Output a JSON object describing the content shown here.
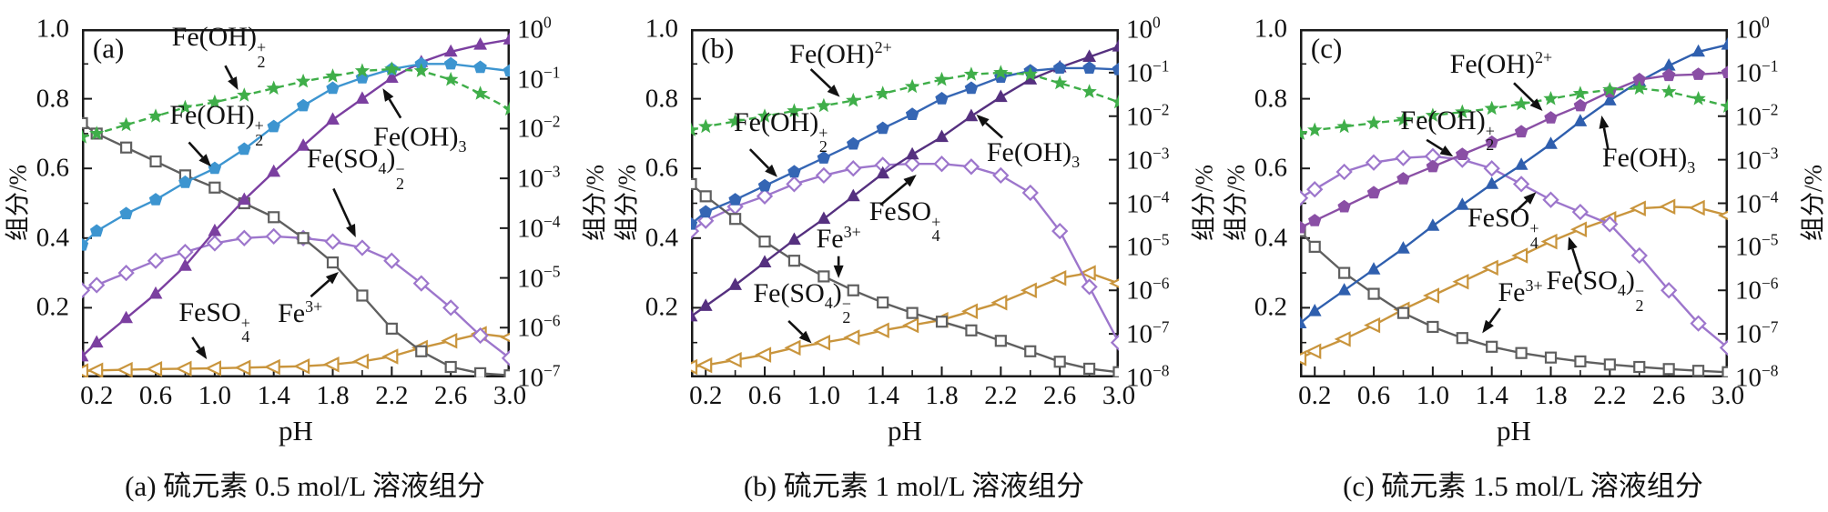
{
  "figure": {
    "background": "#ffffff",
    "axis_color": "#1a1a1a",
    "text_color": "#111111"
  },
  "chart_data": [
    {
      "type": "line",
      "tag": "(a)",
      "caption": "(a) 硫元素 0.5 mol/L 溶液组分",
      "x_label": "pH",
      "y_left_label": "组分/%",
      "y_right_label": "组分/%",
      "x_range": [
        0.1,
        3.0
      ],
      "y_left_range": [
        0,
        1.0
      ],
      "x_ticks": [
        "0.2",
        "0.6",
        "1.0",
        "1.4",
        "1.8",
        "2.2",
        "2.6",
        "3.0"
      ],
      "x_minor_ticks": [
        0.4,
        0.8,
        1.2,
        1.6,
        2.0,
        2.4,
        2.8
      ],
      "y_left_ticks": [
        "1.0",
        "0.8",
        "0.6",
        "0.4",
        "0.2"
      ],
      "y_left_minor_ticks": [
        0.1,
        0.3,
        0.5,
        0.7,
        0.9
      ],
      "y_right_exponents": [
        0,
        -1,
        -2,
        -3,
        -4,
        -5,
        -6,
        -7
      ],
      "x": [
        0.1,
        0.2,
        0.4,
        0.6,
        0.8,
        1.0,
        1.2,
        1.4,
        1.6,
        1.8,
        2.0,
        2.2,
        2.4,
        2.6,
        2.8,
        3.0
      ],
      "series": [
        {
          "species": "FeSO4+",
          "marker": "triangle-left",
          "color": "#c9953d",
          "line": "solid",
          "values": [
            0.018,
            0.02,
            0.022,
            0.024,
            0.025,
            0.026,
            0.028,
            0.03,
            0.032,
            0.037,
            0.046,
            0.06,
            0.085,
            0.105,
            0.125,
            0.115
          ]
        },
        {
          "species": "Fe(SO4)2-",
          "marker": "diamond",
          "color": "#9d76cc",
          "line": "solid",
          "values": [
            0.25,
            0.265,
            0.3,
            0.335,
            0.36,
            0.385,
            0.4,
            0.405,
            0.4,
            0.39,
            0.372,
            0.335,
            0.27,
            0.2,
            0.12,
            0.055
          ]
        },
        {
          "species": "Fe3+",
          "marker": "square",
          "color": "#5f5f5f",
          "line": "solid",
          "values": [
            0.73,
            0.7,
            0.66,
            0.62,
            0.58,
            0.545,
            0.5,
            0.46,
            0.4,
            0.33,
            0.235,
            0.14,
            0.075,
            0.03,
            0.012,
            0.006
          ]
        },
        {
          "species": "Fe(OH)3",
          "marker": "triangle-up",
          "color": "#7b3fa0",
          "line": "solid",
          "values": [
            0.06,
            0.1,
            0.17,
            0.24,
            0.32,
            0.42,
            0.51,
            0.59,
            0.665,
            0.74,
            0.8,
            0.86,
            0.905,
            0.935,
            0.955,
            0.97
          ]
        },
        {
          "species": "Fe(OH)2^+",
          "marker": "pentagon",
          "color": "#3d95d0",
          "line": "solid",
          "values": [
            0.38,
            0.42,
            0.47,
            0.51,
            0.56,
            0.6,
            0.655,
            0.72,
            0.78,
            0.83,
            0.86,
            0.885,
            0.9,
            0.9,
            0.89,
            0.88
          ]
        },
        {
          "species": "Fe(OH)2+",
          "marker": "star",
          "color": "#3fae49",
          "line": "dashed",
          "values": [
            0.69,
            0.7,
            0.725,
            0.75,
            0.775,
            0.79,
            0.81,
            0.83,
            0.85,
            0.865,
            0.88,
            0.885,
            0.88,
            0.855,
            0.815,
            0.77
          ]
        }
      ],
      "annotations": [
        {
          "species": "Fe(OH)2+",
          "label": [
            [
              "t",
              "Fe(OH)"
            ],
            [
              "stk",
              "+|2"
            ]
          ],
          "x": 0.32,
          "y": 0.05,
          "arrow": [
            0.335,
            0.105,
            0.365,
            0.175
          ]
        },
        {
          "species": "Fe(OH)2^+",
          "label": [
            [
              "t",
              "Fe(OH)"
            ],
            [
              "stk",
              "+|2"
            ]
          ],
          "x": 0.315,
          "y": 0.275,
          "arrow": [
            0.25,
            0.325,
            0.302,
            0.395
          ]
        },
        {
          "species": "Fe(OH)3",
          "label": [
            [
              "t",
              "Fe(OH)"
            ],
            [
              "sub",
              "3"
            ]
          ],
          "x": 0.79,
          "y": 0.315,
          "arrow": [
            0.745,
            0.255,
            0.703,
            0.17
          ]
        },
        {
          "species": "Fe(SO4)2-",
          "label": [
            [
              "t",
              "Fe(SO"
            ],
            [
              "sub",
              "4"
            ],
            [
              "t",
              ")"
            ],
            [
              "stk",
              "−|2"
            ]
          ],
          "x": 0.64,
          "y": 0.4,
          "arrow": [
            0.588,
            0.458,
            0.64,
            0.598
          ]
        },
        {
          "species": "Fe3+",
          "label": [
            [
              "t",
              "Fe"
            ],
            [
              "sup",
              "3+"
            ]
          ],
          "x": 0.51,
          "y": 0.815,
          "arrow": [
            0.535,
            0.768,
            0.6,
            0.697
          ]
        },
        {
          "species": "FeSO4+",
          "label": [
            [
              "t",
              "FeSO"
            ],
            [
              "stk",
              "+|4"
            ]
          ],
          "x": 0.31,
          "y": 0.84,
          "arrow": [
            0.258,
            0.885,
            0.292,
            0.948
          ]
        }
      ]
    },
    {
      "type": "line",
      "tag": "(b)",
      "caption": "(b) 硫元素 1 mol/L 溶液组分",
      "x_label": "pH",
      "y_left_label": "组分/%",
      "y_right_label": "组分/%",
      "x_range": [
        0.1,
        3.0
      ],
      "y_left_range": [
        0,
        1.0
      ],
      "x_ticks": [
        "0.2",
        "0.6",
        "1.0",
        "1.4",
        "1.8",
        "2.2",
        "2.6",
        "3.0"
      ],
      "x_minor_ticks": [
        0.4,
        0.8,
        1.2,
        1.6,
        2.0,
        2.4,
        2.8
      ],
      "y_left_ticks": [
        "1.0",
        "0.8",
        "0.6",
        "0.4",
        "0.2"
      ],
      "y_left_minor_ticks": [
        0.1,
        0.3,
        0.5,
        0.7,
        0.9
      ],
      "y_right_exponents": [
        0,
        -1,
        -2,
        -3,
        -4,
        -5,
        -6,
        -7,
        -8
      ],
      "x": [
        0.1,
        0.2,
        0.4,
        0.6,
        0.8,
        1.0,
        1.2,
        1.4,
        1.6,
        1.8,
        2.0,
        2.2,
        2.4,
        2.6,
        2.8,
        3.0
      ],
      "series": [
        {
          "species": "Fe(SO4)2-",
          "marker": "triangle-left",
          "color": "#c9953d",
          "line": "solid",
          "values": [
            0.03,
            0.035,
            0.05,
            0.065,
            0.085,
            0.1,
            0.115,
            0.135,
            0.15,
            0.165,
            0.19,
            0.215,
            0.25,
            0.285,
            0.3,
            0.27
          ]
        },
        {
          "species": "FeSO4+",
          "marker": "diamond",
          "color": "#9d76cc",
          "line": "solid",
          "values": [
            0.42,
            0.45,
            0.49,
            0.52,
            0.555,
            0.58,
            0.6,
            0.61,
            0.613,
            0.613,
            0.605,
            0.58,
            0.53,
            0.42,
            0.26,
            0.1
          ]
        },
        {
          "species": "Fe3+",
          "marker": "square",
          "color": "#5f5f5f",
          "line": "solid",
          "values": [
            0.555,
            0.52,
            0.455,
            0.39,
            0.335,
            0.29,
            0.25,
            0.215,
            0.185,
            0.16,
            0.135,
            0.105,
            0.075,
            0.045,
            0.025,
            0.015
          ]
        },
        {
          "species": "Fe(OH)3",
          "marker": "triangle-up",
          "color": "#55307f",
          "line": "solid",
          "values": [
            0.175,
            0.205,
            0.265,
            0.33,
            0.395,
            0.455,
            0.52,
            0.585,
            0.64,
            0.69,
            0.75,
            0.805,
            0.855,
            0.89,
            0.92,
            0.95
          ]
        },
        {
          "species": "Fe(OH)2^+",
          "marker": "pentagon",
          "color": "#3566b4",
          "line": "solid",
          "values": [
            0.44,
            0.475,
            0.51,
            0.55,
            0.59,
            0.63,
            0.67,
            0.715,
            0.755,
            0.8,
            0.83,
            0.862,
            0.88,
            0.888,
            0.888,
            0.884
          ]
        },
        {
          "species": "Fe(OH)^2+",
          "marker": "star",
          "color": "#3fae49",
          "line": "dashed",
          "values": [
            0.71,
            0.72,
            0.735,
            0.75,
            0.765,
            0.78,
            0.795,
            0.815,
            0.835,
            0.855,
            0.87,
            0.875,
            0.87,
            0.845,
            0.82,
            0.79
          ]
        }
      ],
      "annotations": [
        {
          "species": "Fe(OH)^2+",
          "label": [
            [
              "t",
              "Fe(OH)"
            ],
            [
              "sup",
              "2+"
            ]
          ],
          "x": 0.35,
          "y": 0.07,
          "arrow": [
            0.28,
            0.115,
            0.348,
            0.195
          ]
        },
        {
          "species": "Fe(OH)2^+",
          "label": [
            [
              "t",
              "Fe(OH)"
            ],
            [
              "stk",
              "+|2"
            ]
          ],
          "x": 0.21,
          "y": 0.295,
          "arrow": [
            0.138,
            0.345,
            0.202,
            0.425
          ]
        },
        {
          "species": "Fe3+",
          "label": [
            [
              "t",
              "Fe"
            ],
            [
              "sup",
              "3+"
            ]
          ],
          "x": 0.345,
          "y": 0.6,
          "arrow": [
            0.345,
            0.652,
            0.345,
            0.715
          ]
        },
        {
          "species": "FeSO4+",
          "label": [
            [
              "t",
              "FeSO"
            ],
            [
              "stk",
              "+|4"
            ]
          ],
          "x": 0.5,
          "y": 0.55,
          "arrow": [
            0.443,
            0.505,
            0.527,
            0.418
          ]
        },
        {
          "species": "Fe(SO4)2-",
          "label": [
            [
              "t",
              "Fe(SO"
            ],
            [
              "sub",
              "4"
            ],
            [
              "t",
              ")"
            ],
            [
              "stk",
              "−|2"
            ]
          ],
          "x": 0.26,
          "y": 0.785,
          "arrow": [
            0.228,
            0.838,
            0.282,
            0.902
          ]
        },
        {
          "species": "Fe(OH)3",
          "label": [
            [
              "t",
              "Fe(OH)"
            ],
            [
              "sub",
              "3"
            ]
          ],
          "x": 0.8,
          "y": 0.36,
          "arrow": [
            0.728,
            0.312,
            0.667,
            0.245
          ]
        }
      ]
    },
    {
      "type": "line",
      "tag": "(c)",
      "caption": "(c) 硫元素 1.5 mol/L 溶液组分",
      "x_label": "pH",
      "y_left_label": "组分/%",
      "y_right_label": "组分/%",
      "x_range": [
        0.1,
        3.0
      ],
      "y_left_range": [
        0,
        1.0
      ],
      "x_ticks": [
        "0.2",
        "0.6",
        "1.0",
        "1.4",
        "1.8",
        "2.2",
        "2.6",
        "3.0"
      ],
      "x_minor_ticks": [
        0.4,
        0.8,
        1.2,
        1.6,
        2.0,
        2.4,
        2.8
      ],
      "y_left_ticks": [
        "1.0",
        "0.8",
        "0.6",
        "0.4",
        "0.2"
      ],
      "y_left_minor_ticks": [
        0.1,
        0.3,
        0.5,
        0.7,
        0.9
      ],
      "y_right_exponents": [
        0,
        -1,
        -2,
        -3,
        -4,
        -5,
        -6,
        -7,
        -8
      ],
      "x": [
        0.1,
        0.2,
        0.4,
        0.6,
        0.8,
        1.0,
        1.2,
        1.4,
        1.6,
        1.8,
        2.0,
        2.2,
        2.4,
        2.6,
        2.8,
        3.0
      ],
      "series": [
        {
          "species": "Fe(SO4)2-",
          "marker": "triangle-left",
          "color": "#c9953d",
          "line": "solid",
          "values": [
            0.055,
            0.075,
            0.11,
            0.15,
            0.195,
            0.235,
            0.275,
            0.315,
            0.35,
            0.39,
            0.425,
            0.455,
            0.485,
            0.49,
            0.487,
            0.465
          ]
        },
        {
          "species": "FeSO4+",
          "marker": "diamond",
          "color": "#9d76cc",
          "line": "solid",
          "values": [
            0.515,
            0.54,
            0.59,
            0.617,
            0.63,
            0.635,
            0.625,
            0.6,
            0.555,
            0.51,
            0.475,
            0.44,
            0.35,
            0.25,
            0.155,
            0.085
          ]
        },
        {
          "species": "Fe3+",
          "marker": "square",
          "color": "#5f5f5f",
          "line": "solid",
          "values": [
            0.42,
            0.375,
            0.3,
            0.24,
            0.185,
            0.145,
            0.113,
            0.088,
            0.07,
            0.057,
            0.046,
            0.037,
            0.03,
            0.024,
            0.019,
            0.015
          ]
        },
        {
          "species": "Fe(OH)3",
          "marker": "triangle-up",
          "color": "#2f5fae",
          "line": "solid",
          "values": [
            0.155,
            0.19,
            0.25,
            0.31,
            0.37,
            0.435,
            0.495,
            0.555,
            0.61,
            0.67,
            0.735,
            0.795,
            0.85,
            0.895,
            0.935,
            0.955
          ]
        },
        {
          "species": "Fe(OH)2^+",
          "marker": "pentagon",
          "color": "#8a4fa5",
          "line": "solid",
          "values": [
            0.43,
            0.45,
            0.49,
            0.53,
            0.57,
            0.605,
            0.64,
            0.675,
            0.705,
            0.745,
            0.78,
            0.82,
            0.855,
            0.867,
            0.87,
            0.875
          ]
        },
        {
          "species": "Fe(OH)^2+",
          "marker": "star",
          "color": "#3fae49",
          "line": "dashed",
          "values": [
            0.7,
            0.71,
            0.72,
            0.73,
            0.74,
            0.752,
            0.762,
            0.772,
            0.785,
            0.8,
            0.815,
            0.826,
            0.83,
            0.82,
            0.8,
            0.778
          ]
        }
      ],
      "annotations": [
        {
          "species": "Fe(OH)^2+",
          "label": [
            [
              "t",
              "Fe(OH)"
            ],
            [
              "sup",
              "2+"
            ]
          ],
          "x": 0.47,
          "y": 0.1,
          "arrow": [
            0.5,
            0.155,
            0.567,
            0.235
          ]
        },
        {
          "species": "Fe(OH)2^+",
          "label": [
            [
              "t",
              "Fe(OH)"
            ],
            [
              "stk",
              "+|2"
            ]
          ],
          "x": 0.345,
          "y": 0.29,
          "arrow": [
            0.296,
            0.318,
            0.358,
            0.366
          ]
        },
        {
          "species": "FeSO4+",
          "label": [
            [
              "t",
              "FeSO"
            ],
            [
              "stk",
              "+|4"
            ]
          ],
          "x": 0.475,
          "y": 0.57,
          "arrow": [
            0.503,
            0.525,
            0.552,
            0.468
          ]
        },
        {
          "species": "Fe3+",
          "label": [
            [
              "t",
              "Fe"
            ],
            [
              "sup",
              "3+"
            ]
          ],
          "x": 0.515,
          "y": 0.755,
          "arrow": [
            0.468,
            0.802,
            0.426,
            0.873
          ]
        },
        {
          "species": "Fe(SO4)2-",
          "label": [
            [
              "t",
              "Fe(SO"
            ],
            [
              "sub",
              "4"
            ],
            [
              "t",
              ")"
            ],
            [
              "stk",
              "−|2"
            ]
          ],
          "x": 0.69,
          "y": 0.75,
          "arrow": [
            0.656,
            0.703,
            0.628,
            0.596
          ]
        },
        {
          "species": "Fe(OH)3",
          "label": [
            [
              "t",
              "Fe(OH)"
            ],
            [
              "sub",
              "3"
            ]
          ],
          "x": 0.815,
          "y": 0.375,
          "arrow": [
            0.72,
            0.345,
            0.705,
            0.248
          ]
        }
      ]
    }
  ]
}
